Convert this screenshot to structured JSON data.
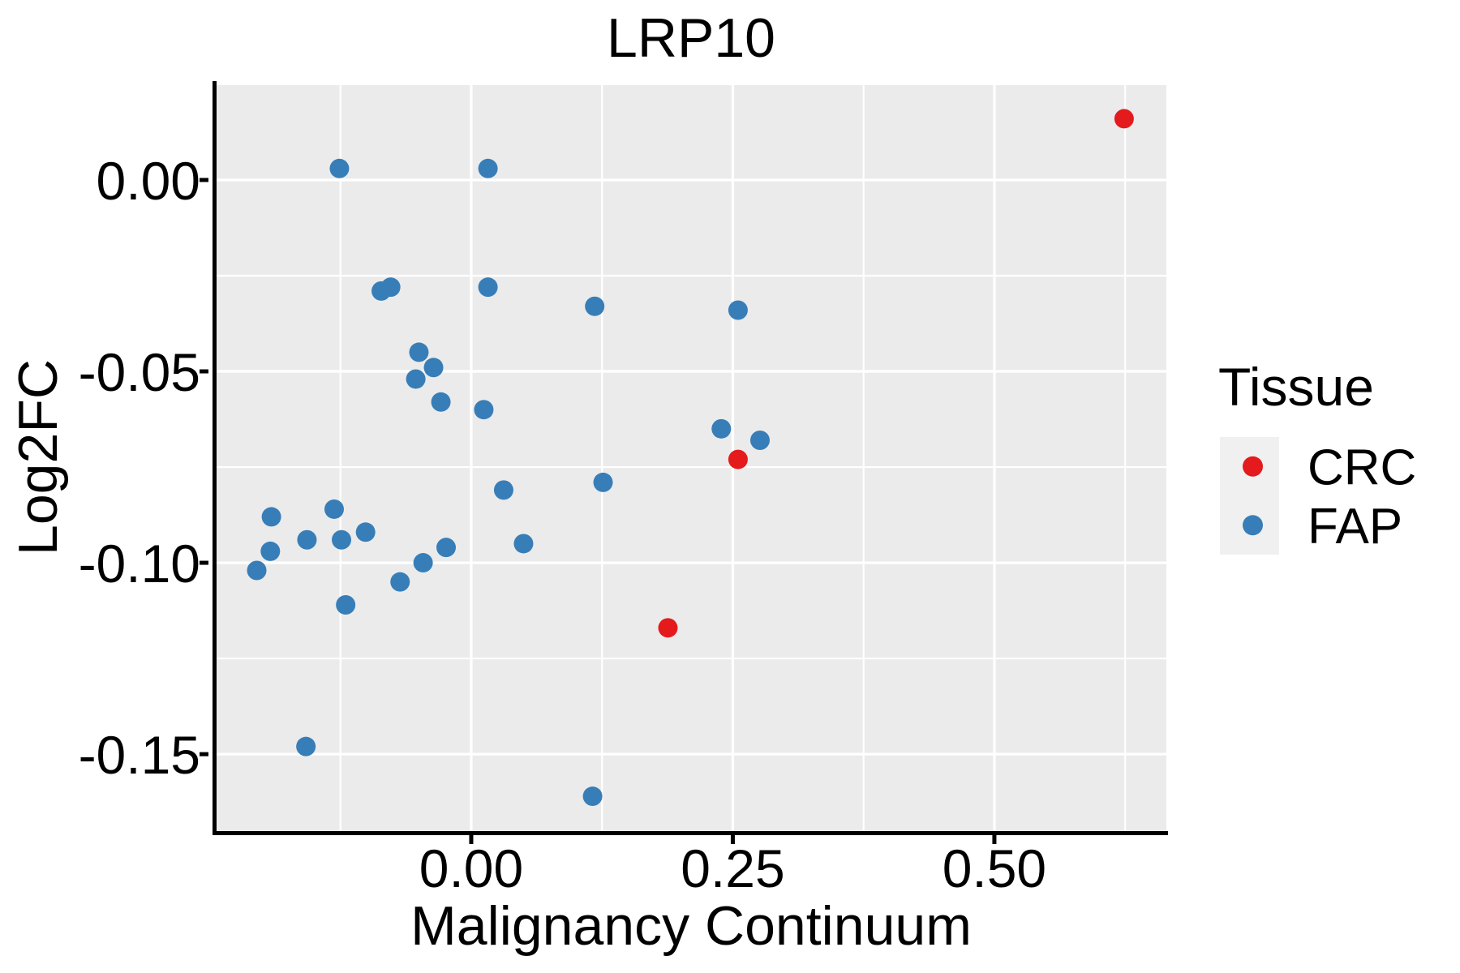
{
  "title": "LRP10",
  "colors": {
    "panel_background": "#EBEBEB",
    "gridline": "#FFFFFF",
    "axis_line": "#000000",
    "text": "#000000",
    "legend_key_background": "#F0F0F0",
    "crc_red": "#E41A1C",
    "fap_blue": "#377EB8"
  },
  "chart_data": {
    "type": "scatter",
    "title": "LRP10",
    "xlabel": "Malignancy Continuum",
    "ylabel": "Log2FC",
    "legend_title": "Tissue",
    "legend_position": "right",
    "grid": true,
    "xlim": [
      -0.2434,
      0.6644
    ],
    "ylim": [
      -0.1701,
      0.0252
    ],
    "x_tick_values": [
      0,
      0.25,
      0.5
    ],
    "x_tick_labels": [
      "0.00",
      "0.25",
      "0.50"
    ],
    "y_tick_values": [
      0,
      -0.05,
      -0.1,
      -0.15
    ],
    "y_tick_labels": [
      "0.00",
      "-0.05",
      "-0.10",
      "-0.15"
    ],
    "x_minor_gridlines": [
      -0.125,
      0.125,
      0.375,
      0.625
    ],
    "y_minor_gridlines": [
      0.025,
      -0.025,
      -0.075,
      -0.125
    ],
    "series": [
      {
        "name": "CRC",
        "color": "#E41A1C",
        "points": [
          [
            0.624,
            0.016
          ],
          [
            0.255,
            -0.073
          ],
          [
            0.188,
            -0.117
          ]
        ]
      },
      {
        "name": "FAP",
        "color": "#377EB8",
        "points": [
          [
            -0.126,
            0.003
          ],
          [
            0.016,
            0.003
          ],
          [
            -0.086,
            -0.029
          ],
          [
            -0.077,
            -0.028
          ],
          [
            0.016,
            -0.028
          ],
          [
            0.118,
            -0.033
          ],
          [
            0.255,
            -0.034
          ],
          [
            -0.05,
            -0.045
          ],
          [
            -0.036,
            -0.049
          ],
          [
            -0.053,
            -0.052
          ],
          [
            -0.029,
            -0.058
          ],
          [
            0.012,
            -0.06
          ],
          [
            0.239,
            -0.065
          ],
          [
            0.276,
            -0.068
          ],
          [
            0.031,
            -0.081
          ],
          [
            0.126,
            -0.079
          ],
          [
            -0.191,
            -0.088
          ],
          [
            -0.131,
            -0.086
          ],
          [
            -0.157,
            -0.094
          ],
          [
            -0.124,
            -0.094
          ],
          [
            -0.101,
            -0.092
          ],
          [
            -0.192,
            -0.097
          ],
          [
            -0.205,
            -0.102
          ],
          [
            -0.046,
            -0.1
          ],
          [
            -0.024,
            -0.096
          ],
          [
            -0.068,
            -0.105
          ],
          [
            -0.12,
            -0.111
          ],
          [
            0.05,
            -0.095
          ],
          [
            -0.158,
            -0.148
          ],
          [
            0.116,
            -0.161
          ]
        ]
      }
    ]
  }
}
